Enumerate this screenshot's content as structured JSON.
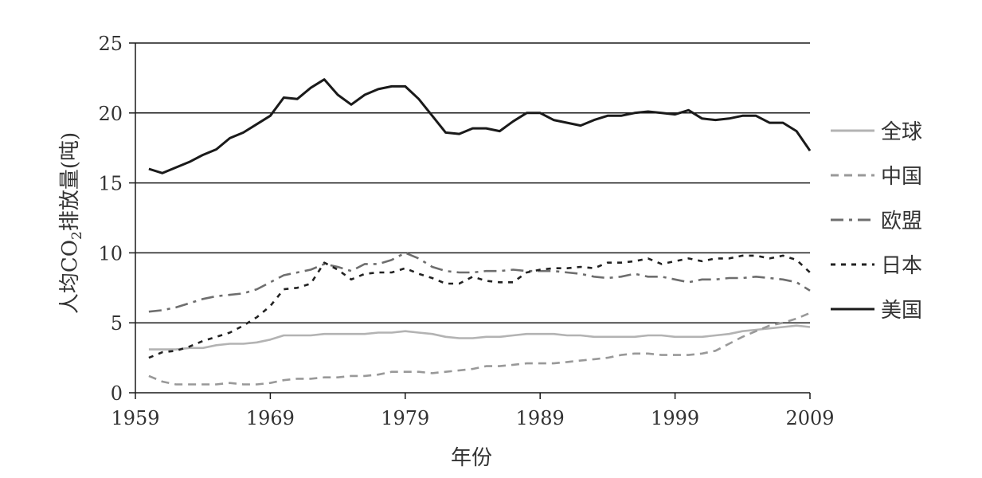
{
  "chart_data": {
    "type": "line",
    "title": "",
    "xlabel": "年份",
    "ylabel": {
      "prefix": "人均CO",
      "sub": "2",
      "suffix": "排放量(吨)"
    },
    "xlim": [
      1959,
      2009
    ],
    "ylim": [
      0,
      25
    ],
    "xticks": [
      1959,
      1969,
      1979,
      1989,
      1999,
      2009
    ],
    "yticks": [
      0,
      5,
      10,
      15,
      20,
      25
    ],
    "grid": "horizontal",
    "legend_position": "right",
    "series": [
      {
        "name": "全球",
        "color": "#b3b3b3",
        "dash": "solid",
        "points": [
          [
            1960,
            3.1
          ],
          [
            1961,
            3.1
          ],
          [
            1962,
            3.1
          ],
          [
            1963,
            3.2
          ],
          [
            1964,
            3.2
          ],
          [
            1965,
            3.4
          ],
          [
            1966,
            3.5
          ],
          [
            1967,
            3.5
          ],
          [
            1968,
            3.6
          ],
          [
            1969,
            3.8
          ],
          [
            1970,
            4.1
          ],
          [
            1971,
            4.1
          ],
          [
            1972,
            4.1
          ],
          [
            1973,
            4.2
          ],
          [
            1974,
            4.2
          ],
          [
            1975,
            4.2
          ],
          [
            1976,
            4.2
          ],
          [
            1977,
            4.3
          ],
          [
            1978,
            4.3
          ],
          [
            1979,
            4.4
          ],
          [
            1980,
            4.3
          ],
          [
            1981,
            4.2
          ],
          [
            1982,
            4.0
          ],
          [
            1983,
            3.9
          ],
          [
            1984,
            3.9
          ],
          [
            1985,
            4.0
          ],
          [
            1986,
            4.0
          ],
          [
            1987,
            4.1
          ],
          [
            1988,
            4.2
          ],
          [
            1989,
            4.2
          ],
          [
            1990,
            4.2
          ],
          [
            1991,
            4.1
          ],
          [
            1992,
            4.1
          ],
          [
            1993,
            4.0
          ],
          [
            1994,
            4.0
          ],
          [
            1995,
            4.0
          ],
          [
            1996,
            4.0
          ],
          [
            1997,
            4.1
          ],
          [
            1998,
            4.1
          ],
          [
            1999,
            4.0
          ],
          [
            2000,
            4.0
          ],
          [
            2001,
            4.0
          ],
          [
            2002,
            4.1
          ],
          [
            2003,
            4.2
          ],
          [
            2004,
            4.4
          ],
          [
            2005,
            4.5
          ],
          [
            2006,
            4.6
          ],
          [
            2007,
            4.7
          ],
          [
            2008,
            4.8
          ],
          [
            2009,
            4.7
          ]
        ]
      },
      {
        "name": "中国",
        "color": "#999999",
        "dash": "10,7",
        "points": [
          [
            1960,
            1.2
          ],
          [
            1961,
            0.8
          ],
          [
            1962,
            0.6
          ],
          [
            1963,
            0.6
          ],
          [
            1964,
            0.6
          ],
          [
            1965,
            0.6
          ],
          [
            1966,
            0.7
          ],
          [
            1967,
            0.6
          ],
          [
            1968,
            0.6
          ],
          [
            1969,
            0.7
          ],
          [
            1970,
            0.9
          ],
          [
            1971,
            1.0
          ],
          [
            1972,
            1.0
          ],
          [
            1973,
            1.1
          ],
          [
            1974,
            1.1
          ],
          [
            1975,
            1.2
          ],
          [
            1976,
            1.2
          ],
          [
            1977,
            1.3
          ],
          [
            1978,
            1.5
          ],
          [
            1979,
            1.5
          ],
          [
            1980,
            1.5
          ],
          [
            1981,
            1.4
          ],
          [
            1982,
            1.5
          ],
          [
            1983,
            1.6
          ],
          [
            1984,
            1.7
          ],
          [
            1985,
            1.9
          ],
          [
            1986,
            1.9
          ],
          [
            1987,
            2.0
          ],
          [
            1988,
            2.1
          ],
          [
            1989,
            2.1
          ],
          [
            1990,
            2.1
          ],
          [
            1991,
            2.2
          ],
          [
            1992,
            2.3
          ],
          [
            1993,
            2.4
          ],
          [
            1994,
            2.5
          ],
          [
            1995,
            2.7
          ],
          [
            1996,
            2.8
          ],
          [
            1997,
            2.8
          ],
          [
            1998,
            2.7
          ],
          [
            1999,
            2.7
          ],
          [
            2000,
            2.7
          ],
          [
            2001,
            2.8
          ],
          [
            2002,
            3.0
          ],
          [
            2003,
            3.5
          ],
          [
            2004,
            4.0
          ],
          [
            2005,
            4.4
          ],
          [
            2006,
            4.8
          ],
          [
            2007,
            5.0
          ],
          [
            2008,
            5.3
          ],
          [
            2009,
            5.7
          ]
        ]
      },
      {
        "name": "欧盟",
        "color": "#6e6e6e",
        "dash": "16,7,4,7",
        "points": [
          [
            1960,
            5.8
          ],
          [
            1961,
            5.9
          ],
          [
            1962,
            6.1
          ],
          [
            1963,
            6.4
          ],
          [
            1964,
            6.7
          ],
          [
            1965,
            6.9
          ],
          [
            1966,
            7.0
          ],
          [
            1967,
            7.1
          ],
          [
            1968,
            7.4
          ],
          [
            1969,
            7.9
          ],
          [
            1970,
            8.4
          ],
          [
            1971,
            8.6
          ],
          [
            1972,
            8.8
          ],
          [
            1973,
            9.2
          ],
          [
            1974,
            9.0
          ],
          [
            1975,
            8.7
          ],
          [
            1976,
            9.2
          ],
          [
            1977,
            9.2
          ],
          [
            1978,
            9.5
          ],
          [
            1979,
            10.0
          ],
          [
            1980,
            9.6
          ],
          [
            1981,
            9.0
          ],
          [
            1982,
            8.7
          ],
          [
            1983,
            8.6
          ],
          [
            1984,
            8.6
          ],
          [
            1985,
            8.7
          ],
          [
            1986,
            8.7
          ],
          [
            1987,
            8.8
          ],
          [
            1988,
            8.7
          ],
          [
            1989,
            8.7
          ],
          [
            1990,
            8.7
          ],
          [
            1991,
            8.6
          ],
          [
            1992,
            8.5
          ],
          [
            1993,
            8.3
          ],
          [
            1994,
            8.2
          ],
          [
            1995,
            8.3
          ],
          [
            1996,
            8.5
          ],
          [
            1997,
            8.3
          ],
          [
            1998,
            8.3
          ],
          [
            1999,
            8.1
          ],
          [
            2000,
            7.9
          ],
          [
            2001,
            8.1
          ],
          [
            2002,
            8.1
          ],
          [
            2003,
            8.2
          ],
          [
            2004,
            8.2
          ],
          [
            2005,
            8.3
          ],
          [
            2006,
            8.2
          ],
          [
            2007,
            8.1
          ],
          [
            2008,
            7.9
          ],
          [
            2009,
            7.3
          ]
        ]
      },
      {
        "name": "日本",
        "color": "#222222",
        "dash": "6,7",
        "points": [
          [
            1960,
            2.5
          ],
          [
            1961,
            2.9
          ],
          [
            1962,
            3.0
          ],
          [
            1963,
            3.3
          ],
          [
            1964,
            3.7
          ],
          [
            1965,
            4.0
          ],
          [
            1966,
            4.3
          ],
          [
            1967,
            4.8
          ],
          [
            1968,
            5.4
          ],
          [
            1969,
            6.2
          ],
          [
            1970,
            7.4
          ],
          [
            1971,
            7.5
          ],
          [
            1972,
            7.8
          ],
          [
            1973,
            9.3
          ],
          [
            1974,
            8.8
          ],
          [
            1975,
            8.1
          ],
          [
            1976,
            8.5
          ],
          [
            1977,
            8.6
          ],
          [
            1978,
            8.6
          ],
          [
            1979,
            8.9
          ],
          [
            1980,
            8.5
          ],
          [
            1981,
            8.2
          ],
          [
            1982,
            7.8
          ],
          [
            1983,
            7.8
          ],
          [
            1984,
            8.3
          ],
          [
            1985,
            8.0
          ],
          [
            1986,
            7.9
          ],
          [
            1987,
            7.9
          ],
          [
            1988,
            8.6
          ],
          [
            1989,
            8.8
          ],
          [
            1990,
            8.9
          ],
          [
            1991,
            8.9
          ],
          [
            1992,
            9.0
          ],
          [
            1993,
            8.9
          ],
          [
            1994,
            9.3
          ],
          [
            1995,
            9.3
          ],
          [
            1996,
            9.4
          ],
          [
            1997,
            9.6
          ],
          [
            1998,
            9.2
          ],
          [
            1999,
            9.4
          ],
          [
            2000,
            9.6
          ],
          [
            2001,
            9.4
          ],
          [
            2002,
            9.6
          ],
          [
            2003,
            9.6
          ],
          [
            2004,
            9.8
          ],
          [
            2005,
            9.8
          ],
          [
            2006,
            9.6
          ],
          [
            2007,
            9.8
          ],
          [
            2008,
            9.5
          ],
          [
            2009,
            8.6
          ]
        ]
      },
      {
        "name": "美国",
        "color": "#1a1a1a",
        "dash": "solid",
        "points": [
          [
            1960,
            16.0
          ],
          [
            1961,
            15.7
          ],
          [
            1962,
            16.1
          ],
          [
            1963,
            16.5
          ],
          [
            1964,
            17.0
          ],
          [
            1965,
            17.4
          ],
          [
            1966,
            18.2
          ],
          [
            1967,
            18.6
          ],
          [
            1968,
            19.2
          ],
          [
            1969,
            19.8
          ],
          [
            1970,
            21.1
          ],
          [
            1971,
            21.0
          ],
          [
            1972,
            21.8
          ],
          [
            1973,
            22.4
          ],
          [
            1974,
            21.3
          ],
          [
            1975,
            20.6
          ],
          [
            1976,
            21.3
          ],
          [
            1977,
            21.7
          ],
          [
            1978,
            21.9
          ],
          [
            1979,
            21.9
          ],
          [
            1980,
            21.0
          ],
          [
            1981,
            19.8
          ],
          [
            1982,
            18.6
          ],
          [
            1983,
            18.5
          ],
          [
            1984,
            18.9
          ],
          [
            1985,
            18.9
          ],
          [
            1986,
            18.7
          ],
          [
            1987,
            19.4
          ],
          [
            1988,
            20.0
          ],
          [
            1989,
            20.0
          ],
          [
            1990,
            19.5
          ],
          [
            1991,
            19.3
          ],
          [
            1992,
            19.1
          ],
          [
            1993,
            19.5
          ],
          [
            1994,
            19.8
          ],
          [
            1995,
            19.8
          ],
          [
            1996,
            20.0
          ],
          [
            1997,
            20.1
          ],
          [
            1998,
            20.0
          ],
          [
            1999,
            19.9
          ],
          [
            2000,
            20.2
          ],
          [
            2001,
            19.6
          ],
          [
            2002,
            19.5
          ],
          [
            2003,
            19.6
          ],
          [
            2004,
            19.8
          ],
          [
            2005,
            19.8
          ],
          [
            2006,
            19.3
          ],
          [
            2007,
            19.3
          ],
          [
            2008,
            18.7
          ],
          [
            2009,
            17.3
          ]
        ]
      }
    ]
  }
}
